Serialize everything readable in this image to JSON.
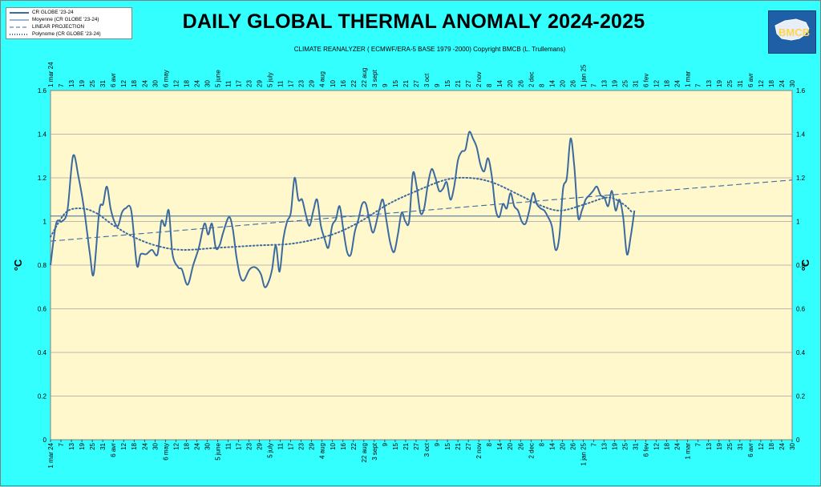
{
  "header": {
    "title": "DAILY GLOBAL THERMAL ANOMALY 2024-2025",
    "subtitle": "CLIMATE REANALYZER ( ECMWF/ERA-5 BASE 1979 -2000)      Copyright BMCB (L. Trullemans)",
    "logo_text": "BMCB"
  },
  "legend": {
    "items": [
      {
        "label": "CR GLOBE '23-24",
        "style": "solid-thick"
      },
      {
        "label": "Moyenne (CR GLOBE '23-24)",
        "style": "solid-thin"
      },
      {
        "label": "LINEAR PROJECTION",
        "style": "dashed"
      },
      {
        "label": "Polynome (CR GLOBE '23-24)",
        "style": "dotted"
      }
    ]
  },
  "colors": {
    "background": "#33ffff",
    "plot_area": "#fff8cc",
    "series": "#3b6aa0",
    "grid": "#a6a6a6"
  },
  "chart_data": {
    "type": "line",
    "ylabel": "°C",
    "ylim": [
      0,
      1.6
    ],
    "yticks": [
      0,
      0.2,
      0.4,
      0.6,
      0.8,
      1,
      1.2,
      1.4,
      1.6
    ],
    "x_range_days": [
      0,
      395
    ],
    "x_start_date": "2024-03-01",
    "x_tick_labels": [
      "1 mar 24",
      "7",
      "13",
      "19",
      "25",
      "31",
      "6 avr",
      "12",
      "18",
      "24",
      "30",
      "6 may",
      "12",
      "18",
      "24",
      "30",
      "5 june",
      "11",
      "17",
      "23",
      "29",
      "5 july",
      "11",
      "17",
      "23",
      "29",
      "4 aug",
      "10",
      "16",
      "22",
      "22 aug",
      "3 sept",
      "9",
      "15",
      "21",
      "27",
      "3 oct",
      "9",
      "15",
      "21",
      "27",
      "2 nov",
      "8",
      "14",
      "20",
      "26",
      "2 dec",
      "8",
      "14",
      "20",
      "26",
      "1 jan 25",
      "7",
      "13",
      "19",
      "25",
      "31",
      "6 fev",
      "12",
      "18",
      "24",
      "1 mar",
      "7",
      "13",
      "19",
      "25",
      "31",
      "6 avr",
      "12",
      "18",
      "24",
      "30"
    ],
    "series": [
      {
        "name": "CR GLOBE '23-24",
        "style": "solid",
        "points": [
          [
            0,
            0.8
          ],
          [
            3,
            0.99
          ],
          [
            6,
            1.0
          ],
          [
            9,
            1.05
          ],
          [
            12,
            1.3
          ],
          [
            15,
            1.2
          ],
          [
            18,
            1.05
          ],
          [
            21,
            0.85
          ],
          [
            23,
            0.76
          ],
          [
            26,
            1.05
          ],
          [
            28,
            1.08
          ],
          [
            30,
            1.16
          ],
          [
            32,
            1.06
          ],
          [
            34,
            1.0
          ],
          [
            36,
            0.98
          ],
          [
            38,
            1.04
          ],
          [
            40,
            1.06
          ],
          [
            43,
            1.05
          ],
          [
            46,
            0.8
          ],
          [
            48,
            0.85
          ],
          [
            51,
            0.85
          ],
          [
            54,
            0.87
          ],
          [
            57,
            0.85
          ],
          [
            59,
            1.0
          ],
          [
            61,
            0.98
          ],
          [
            63,
            1.05
          ],
          [
            65,
            0.85
          ],
          [
            68,
            0.79
          ],
          [
            70,
            0.78
          ],
          [
            73,
            0.71
          ],
          [
            76,
            0.8
          ],
          [
            79,
            0.88
          ],
          [
            82,
            0.99
          ],
          [
            84,
            0.94
          ],
          [
            86,
            0.99
          ],
          [
            88,
            0.88
          ],
          [
            90,
            0.89
          ],
          [
            92,
            0.95
          ],
          [
            95,
            1.02
          ],
          [
            97,
            0.97
          ],
          [
            99,
            0.84
          ],
          [
            101,
            0.75
          ],
          [
            103,
            0.73
          ],
          [
            106,
            0.78
          ],
          [
            109,
            0.79
          ],
          [
            112,
            0.76
          ],
          [
            114,
            0.7
          ],
          [
            116,
            0.72
          ],
          [
            118,
            0.78
          ],
          [
            120,
            0.89
          ],
          [
            122,
            0.77
          ],
          [
            124,
            0.92
          ],
          [
            126,
            1.0
          ],
          [
            128,
            1.04
          ],
          [
            130,
            1.2
          ],
          [
            132,
            1.1
          ],
          [
            134,
            1.1
          ],
          [
            136,
            1.03
          ],
          [
            138,
            0.98
          ],
          [
            140,
            1.05
          ],
          [
            142,
            1.1
          ],
          [
            144,
            0.98
          ],
          [
            146,
            0.92
          ],
          [
            148,
            0.88
          ],
          [
            150,
            0.98
          ],
          [
            152,
            1.01
          ],
          [
            154,
            1.07
          ],
          [
            156,
            0.96
          ],
          [
            158,
            0.86
          ],
          [
            160,
            0.85
          ],
          [
            162,
            0.95
          ],
          [
            164,
            1.01
          ],
          [
            166,
            1.08
          ],
          [
            168,
            1.08
          ],
          [
            170,
            1.0
          ],
          [
            172,
            0.95
          ],
          [
            175,
            1.05
          ],
          [
            177,
            1.1
          ],
          [
            179,
            1.0
          ],
          [
            181,
            0.9
          ],
          [
            183,
            0.86
          ],
          [
            185,
            0.94
          ],
          [
            187,
            1.04
          ],
          [
            189,
            1.0
          ],
          [
            191,
            1.0
          ],
          [
            193,
            1.22
          ],
          [
            195,
            1.16
          ],
          [
            197,
            1.04
          ],
          [
            199,
            1.06
          ],
          [
            201,
            1.17
          ],
          [
            203,
            1.24
          ],
          [
            205,
            1.2
          ],
          [
            207,
            1.14
          ],
          [
            209,
            1.15
          ],
          [
            211,
            1.18
          ],
          [
            213,
            1.1
          ],
          [
            215,
            1.16
          ],
          [
            217,
            1.28
          ],
          [
            219,
            1.32
          ],
          [
            221,
            1.33
          ],
          [
            223,
            1.41
          ],
          [
            225,
            1.38
          ],
          [
            227,
            1.34
          ],
          [
            229,
            1.26
          ],
          [
            231,
            1.23
          ],
          [
            233,
            1.29
          ],
          [
            235,
            1.21
          ],
          [
            237,
            1.06
          ],
          [
            239,
            1.02
          ],
          [
            241,
            1.08
          ],
          [
            243,
            1.06
          ],
          [
            245,
            1.13
          ],
          [
            247,
            1.07
          ],
          [
            249,
            1.05
          ],
          [
            251,
            1.0
          ],
          [
            253,
            0.99
          ],
          [
            255,
            1.05
          ],
          [
            257,
            1.13
          ],
          [
            259,
            1.08
          ],
          [
            261,
            1.06
          ],
          [
            263,
            1.05
          ],
          [
            265,
            1.02
          ],
          [
            267,
            0.98
          ],
          [
            269,
            0.87
          ],
          [
            271,
            0.93
          ],
          [
            273,
            1.15
          ],
          [
            275,
            1.2
          ],
          [
            277,
            1.38
          ],
          [
            279,
            1.25
          ],
          [
            281,
            1.02
          ],
          [
            283,
            1.05
          ],
          [
            285,
            1.1
          ],
          [
            287,
            1.12
          ],
          [
            289,
            1.14
          ],
          [
            291,
            1.16
          ],
          [
            293,
            1.12
          ],
          [
            295,
            1.11
          ],
          [
            297,
            1.07
          ],
          [
            299,
            1.14
          ],
          [
            301,
            1.05
          ],
          [
            303,
            1.1
          ],
          [
            305,
            1.02
          ],
          [
            307,
            0.85
          ],
          [
            309,
            0.93
          ],
          [
            311,
            1.05
          ]
        ]
      },
      {
        "name": "Moyenne (CR GLOBE '23-24)",
        "style": "solid-thin",
        "points": [
          [
            0,
            1.025
          ],
          [
            395,
            1.025
          ]
        ]
      },
      {
        "name": "LINEAR PROJECTION",
        "style": "dashed",
        "points": [
          [
            0,
            0.91
          ],
          [
            395,
            1.19
          ]
        ]
      },
      {
        "name": "Polynome (CR GLOBE '23-24)",
        "style": "dotted",
        "points": [
          [
            0,
            0.93
          ],
          [
            8,
            1.04
          ],
          [
            16,
            1.06
          ],
          [
            24,
            1.04
          ],
          [
            34,
            0.98
          ],
          [
            44,
            0.93
          ],
          [
            56,
            0.89
          ],
          [
            70,
            0.87
          ],
          [
            90,
            0.88
          ],
          [
            110,
            0.89
          ],
          [
            130,
            0.9
          ],
          [
            150,
            0.94
          ],
          [
            165,
            1.0
          ],
          [
            180,
            1.08
          ],
          [
            195,
            1.14
          ],
          [
            210,
            1.19
          ],
          [
            222,
            1.2
          ],
          [
            235,
            1.18
          ],
          [
            250,
            1.12
          ],
          [
            262,
            1.07
          ],
          [
            272,
            1.05
          ],
          [
            285,
            1.08
          ],
          [
            297,
            1.11
          ],
          [
            305,
            1.08
          ],
          [
            310,
            1.04
          ]
        ]
      }
    ],
    "grid": true,
    "legend_position": "top-left"
  }
}
